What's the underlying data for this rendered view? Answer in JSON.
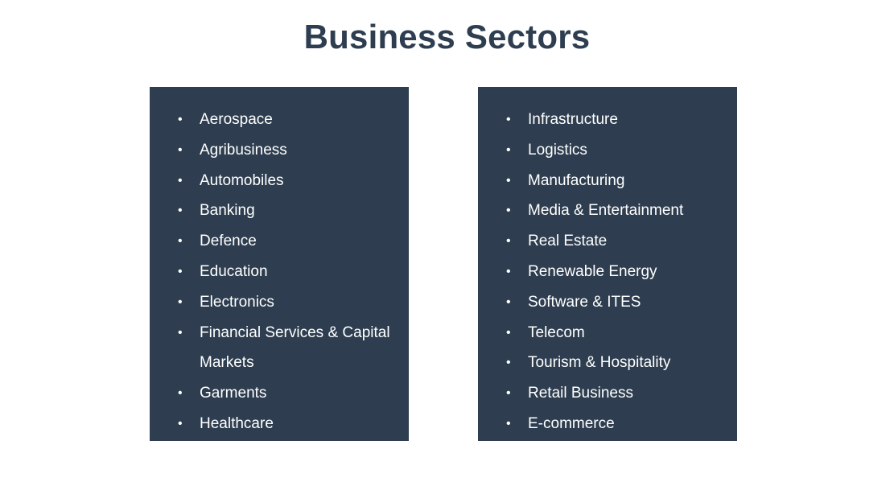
{
  "title": "Business Sectors",
  "colors": {
    "panel": "#2e3e50",
    "title": "#2e3e50",
    "text": "#ffffff"
  },
  "bullet_glyph": "•",
  "left_sectors": [
    "Aerospace",
    "Agribusiness",
    "Automobiles",
    "Banking",
    "Defence",
    "Education",
    "Electronics",
    "Financial Services & Capital Markets",
    "Garments",
    "Healthcare"
  ],
  "right_sectors": [
    "Infrastructure",
    "Logistics",
    "Manufacturing",
    "Media & Entertainment",
    "Real Estate",
    "Renewable Energy",
    "Software & ITES",
    "Telecom",
    "Tourism & Hospitality",
    "Retail Business",
    "E-commerce"
  ]
}
